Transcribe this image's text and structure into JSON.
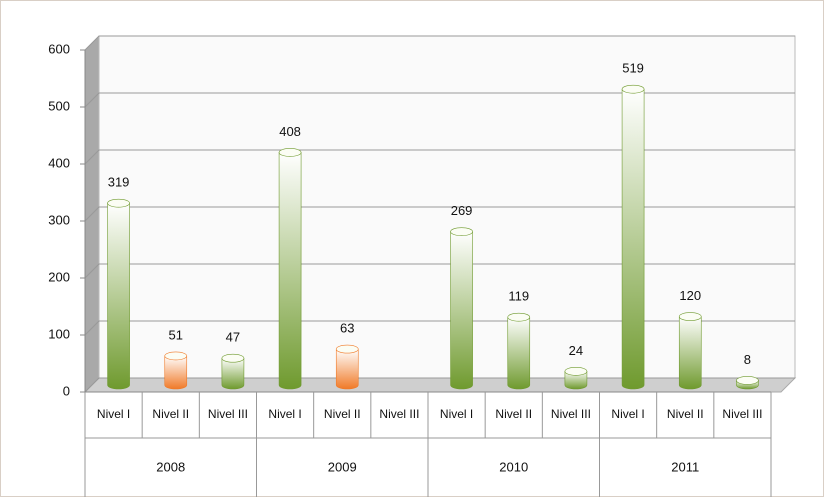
{
  "chart_data": {
    "type": "bar",
    "categories": [
      "Nivel I",
      "Nivel II",
      "Nivel III",
      "Nivel I",
      "Nivel II",
      "Nivel III",
      "Nivel I",
      "Nivel II",
      "Nivel III",
      "Nivel I",
      "Nivel II",
      "Nivel III"
    ],
    "group_labels": [
      "2008",
      "2009",
      "2010",
      "2011"
    ],
    "values": [
      319,
      51,
      47,
      408,
      63,
      null,
      269,
      119,
      24,
      519,
      120,
      8
    ],
    "colors": [
      "#6f9a2e",
      "#f07a28",
      "#6f9a2e",
      "#6f9a2e",
      "#f07a28",
      "#6f9a2e",
      "#6f9a2e",
      "#6f9a2e",
      "#6f9a2e",
      "#6f9a2e",
      "#6f9a2e",
      "#6f9a2e"
    ],
    "ylim": [
      0,
      600
    ],
    "yticks": [
      0,
      100,
      200,
      300,
      400,
      500,
      600
    ],
    "grid": true
  }
}
